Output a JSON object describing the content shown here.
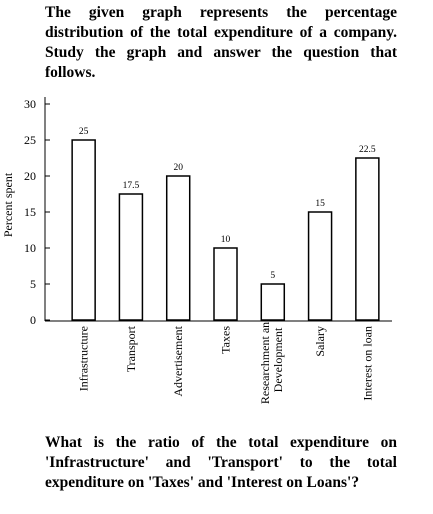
{
  "question_intro": "The given graph represents the percentage distribution of the total expenditure of a company. Study the graph and answer the question that follows.",
  "chart_data": {
    "type": "bar",
    "y_label": "Percent spent",
    "categories": [
      "Infrastructure",
      "Transport",
      "Advertisement",
      "Taxes",
      "Researchment and Development",
      "Salary",
      "Interest on loan"
    ],
    "values": [
      25,
      17.5,
      20,
      10,
      5,
      15,
      22.5
    ],
    "color": "#ffffff",
    "ylim": [
      0,
      30
    ],
    "yticks": [
      0,
      5,
      10,
      15,
      20,
      25,
      30
    ],
    "grid": false
  },
  "question": "What is the ratio of the total expenditure on 'Infrastructure' and 'Transport' to the total expenditure on 'Taxes' and 'Interest on Loans'?"
}
